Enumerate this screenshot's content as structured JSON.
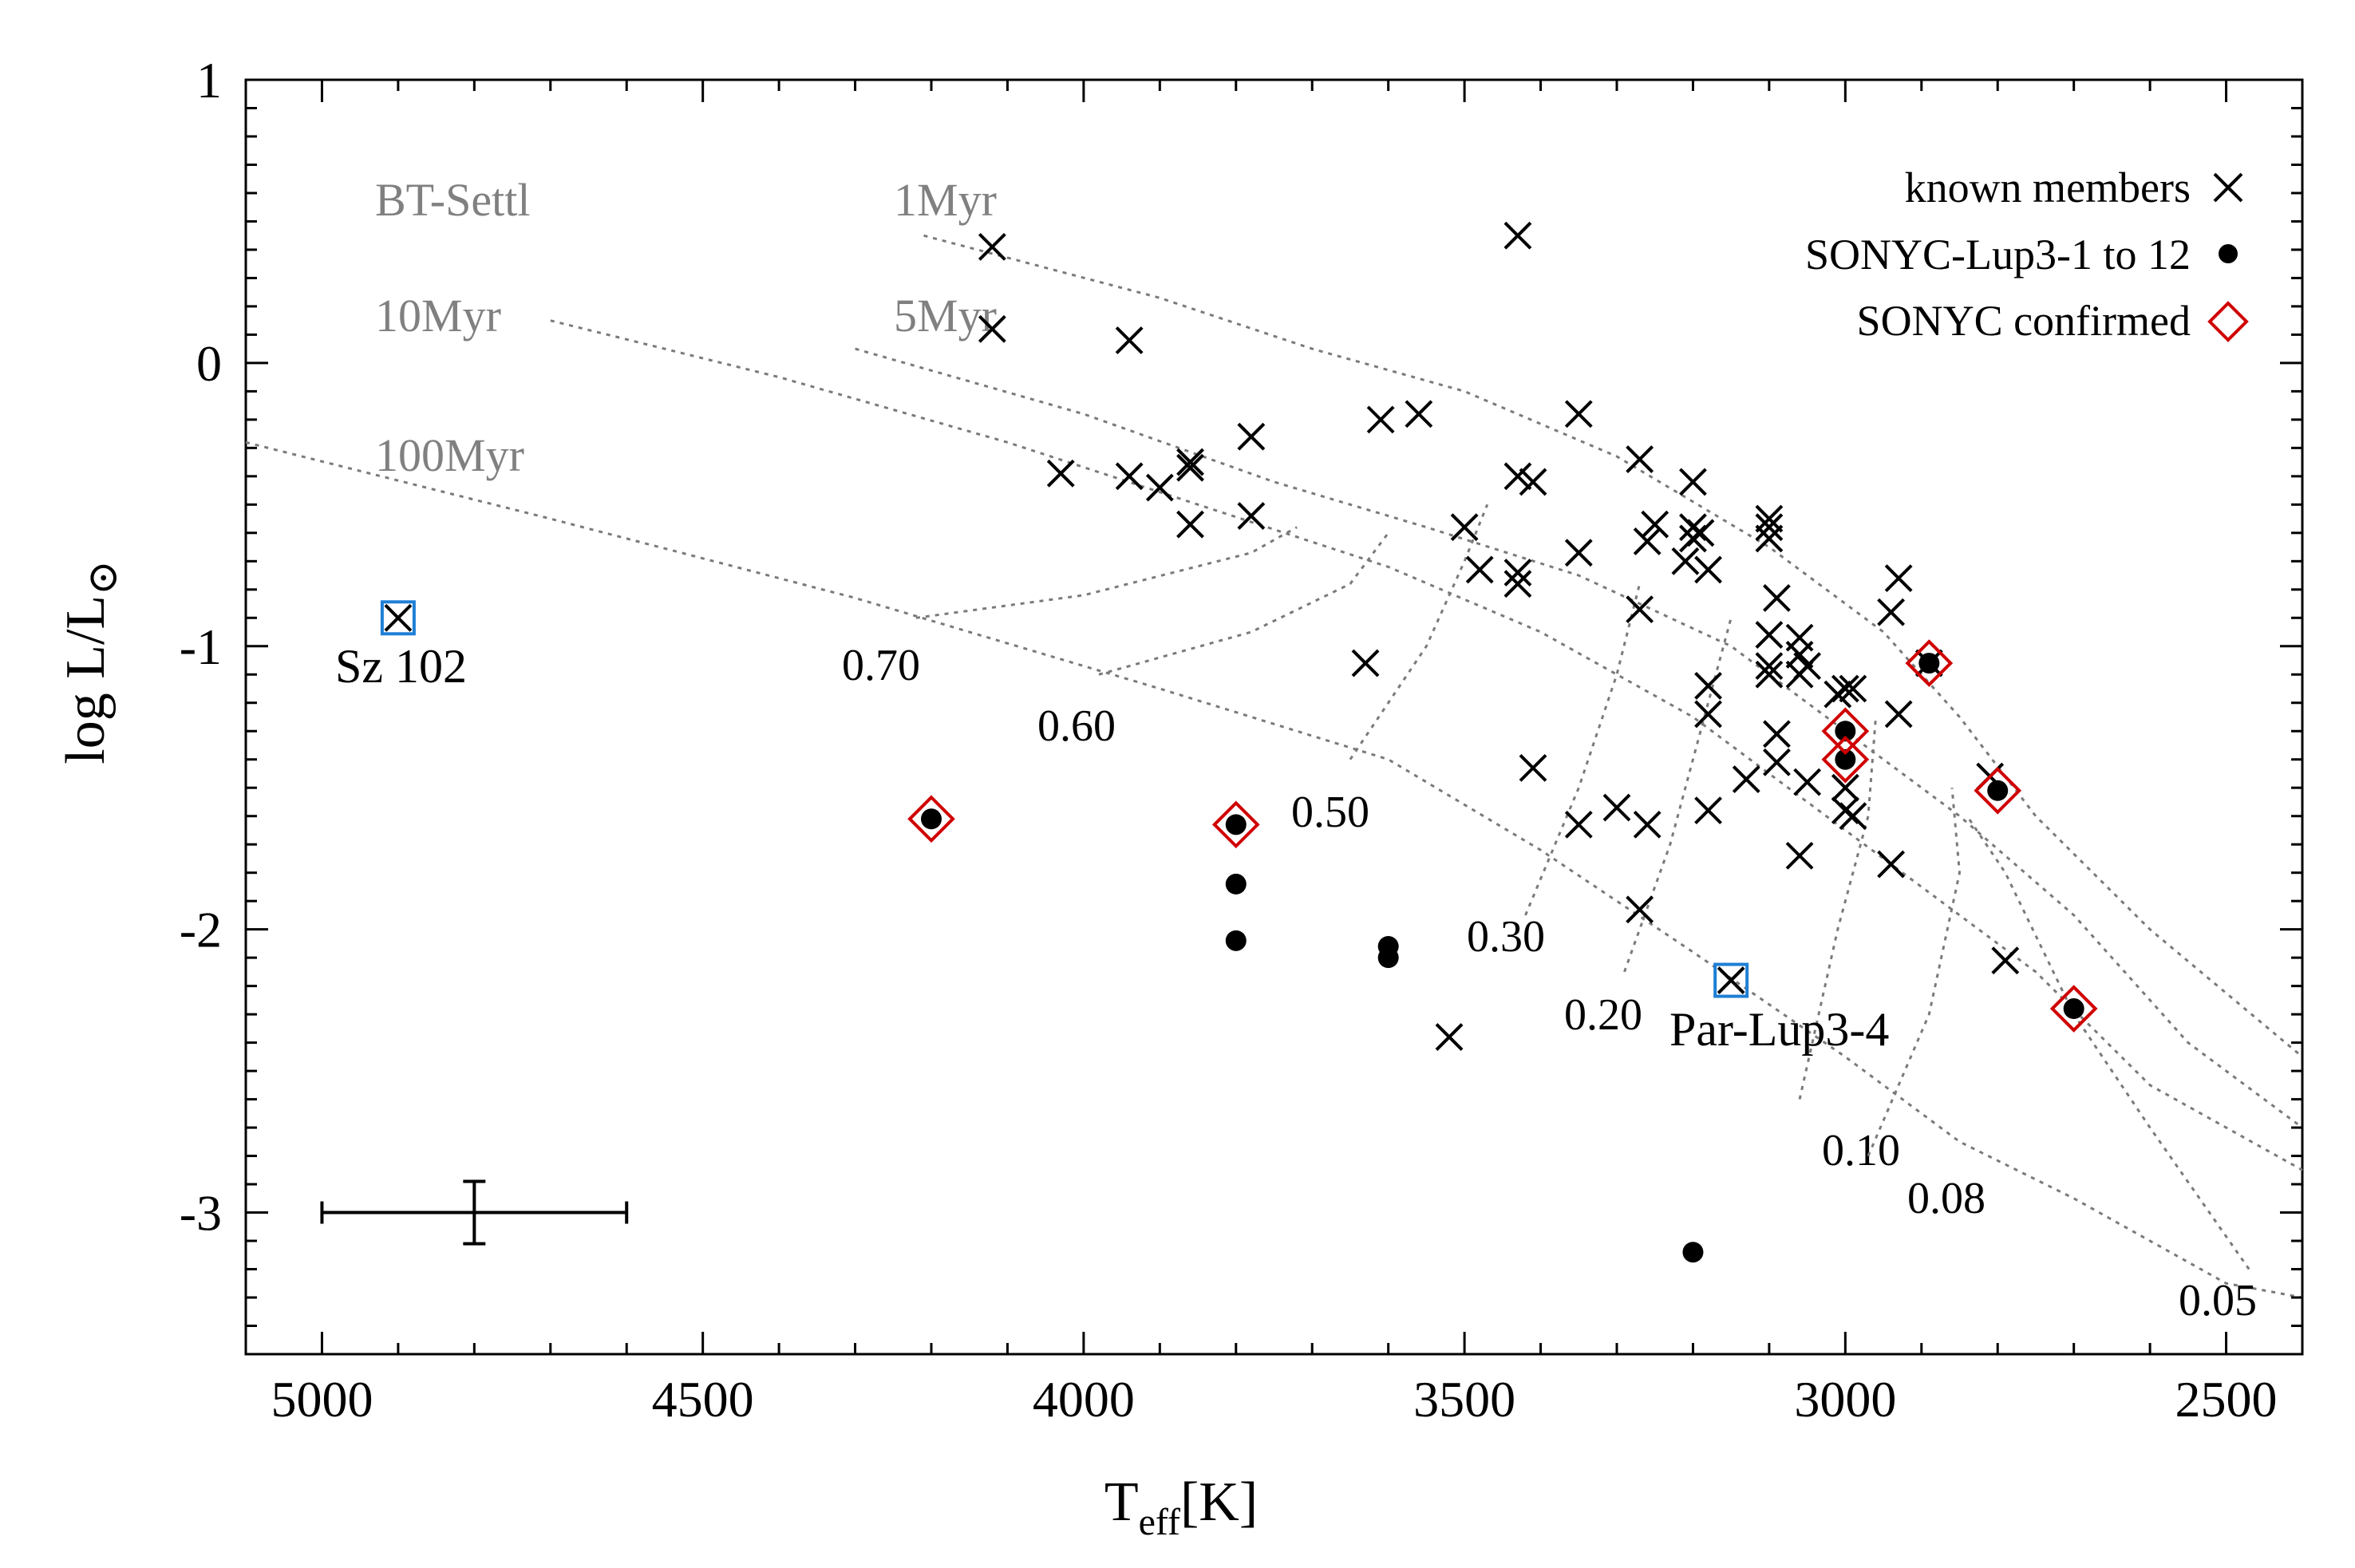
{
  "chart_data": {
    "type": "scatter",
    "xlabel": "T",
    "xlabel_sub": "eff",
    "xlabel_unit": "[K]",
    "ylabel": "log L/L",
    "ylabel_sub": "⊙",
    "xlim": [
      5100,
      2400
    ],
    "ylim": [
      -3.5,
      1.0
    ],
    "xticks": [
      5000,
      4500,
      4000,
      3500,
      3000,
      2500
    ],
    "xtick_labels": [
      "5000",
      "4500",
      "4000",
      "3500",
      "3000",
      "2500"
    ],
    "yticks": [
      1,
      0,
      -1,
      -2,
      -3
    ],
    "ytick_labels": [
      "1",
      "0",
      "-1",
      "-2",
      "-3"
    ],
    "legend": {
      "position": "top-right",
      "entries": [
        {
          "label": "known members",
          "symbol": "cross"
        },
        {
          "label": "SONYC-Lup3-1 to 12",
          "symbol": "dot"
        },
        {
          "label": "SONYC confirmed",
          "symbol": "diamond"
        }
      ]
    },
    "model_label": "BT-Settl",
    "known_members": [
      [
        4120,
        0.41
      ],
      [
        4120,
        0.12
      ],
      [
        3940,
        0.08
      ],
      [
        4030,
        -0.39
      ],
      [
        3940,
        -0.4
      ],
      [
        3900,
        -0.44
      ],
      [
        3860,
        -0.37
      ],
      [
        3860,
        -0.35
      ],
      [
        3860,
        -0.57
      ],
      [
        3780,
        -0.26
      ],
      [
        3780,
        -0.54
      ],
      [
        3610,
        -0.2
      ],
      [
        3560,
        -0.18
      ],
      [
        3630,
        -1.06
      ],
      [
        3500,
        -0.58
      ],
      [
        3480,
        -0.73
      ],
      [
        3430,
        0.45
      ],
      [
        3430,
        -0.4
      ],
      [
        3410,
        -0.42
      ],
      [
        3430,
        -0.74
      ],
      [
        3430,
        -0.78
      ],
      [
        3410,
        -1.43
      ],
      [
        3350,
        -0.18
      ],
      [
        3350,
        -0.67
      ],
      [
        3350,
        -1.63
      ],
      [
        3300,
        -1.57
      ],
      [
        3270,
        -0.34
      ],
      [
        3260,
        -0.63
      ],
      [
        3250,
        -0.57
      ],
      [
        3270,
        -0.87
      ],
      [
        3260,
        -1.63
      ],
      [
        3270,
        -1.93
      ],
      [
        3200,
        -0.42
      ],
      [
        3200,
        -0.58
      ],
      [
        3200,
        -0.62
      ],
      [
        3210,
        -0.7
      ],
      [
        3180,
        -0.73
      ],
      [
        3190,
        -0.6
      ],
      [
        3180,
        -1.14
      ],
      [
        3180,
        -1.24
      ],
      [
        3180,
        -1.58
      ],
      [
        3130,
        -1.47
      ],
      [
        3100,
        -0.55
      ],
      [
        3100,
        -0.58
      ],
      [
        3100,
        -0.62
      ],
      [
        3090,
        -0.83
      ],
      [
        3100,
        -0.96
      ],
      [
        3100,
        -1.07
      ],
      [
        3100,
        -1.1
      ],
      [
        3090,
        -1.31
      ],
      [
        3090,
        -1.41
      ],
      [
        3060,
        -0.97
      ],
      [
        3060,
        -1.03
      ],
      [
        3050,
        -1.07
      ],
      [
        3060,
        -1.1
      ],
      [
        3050,
        -1.48
      ],
      [
        3060,
        -1.74
      ],
      [
        3000,
        -1.15
      ],
      [
        2990,
        -1.15
      ],
      [
        3010,
        -1.17
      ],
      [
        3000,
        -1.5
      ],
      [
        3000,
        -1.58
      ],
      [
        2990,
        -1.6
      ],
      [
        2930,
        -0.76
      ],
      [
        2940,
        -0.88
      ],
      [
        2930,
        -1.24
      ],
      [
        2940,
        -1.77
      ],
      [
        2890,
        -1.06
      ],
      [
        2810,
        -1.46
      ],
      [
        2790,
        -2.11
      ],
      [
        3520,
        -2.38
      ],
      [
        3150,
        -2.18
      ],
      [
        4900,
        -0.9
      ]
    ],
    "sonyc_candidates": [
      [
        4200,
        -1.61
      ],
      [
        3800,
        -1.63
      ],
      [
        3800,
        -1.84
      ],
      [
        3800,
        -2.04
      ],
      [
        3600,
        -2.06
      ],
      [
        3600,
        -2.1
      ],
      [
        3000,
        -1.3
      ],
      [
        3000,
        -1.4
      ],
      [
        2890,
        -1.06
      ],
      [
        2800,
        -1.51
      ],
      [
        2700,
        -2.28
      ],
      [
        3200,
        -3.14
      ]
    ],
    "sonyc_confirmed": [
      [
        4200,
        -1.61
      ],
      [
        3800,
        -1.63
      ],
      [
        3000,
        -1.3
      ],
      [
        3000,
        -1.4
      ],
      [
        2890,
        -1.06
      ],
      [
        2800,
        -1.51
      ],
      [
        2700,
        -2.28
      ]
    ],
    "highlighted": [
      {
        "label": "Sz 102",
        "x": 4900,
        "y": -0.9
      },
      {
        "label": "Par-Lup3-4",
        "x": 3150,
        "y": -2.18
      }
    ],
    "isochrones": [
      {
        "label": "1Myr",
        "points": [
          [
            4210,
            0.45
          ],
          [
            3900,
            0.23
          ],
          [
            3700,
            0.05
          ],
          [
            3500,
            -0.1
          ],
          [
            3300,
            -0.33
          ],
          [
            3100,
            -0.65
          ],
          [
            2950,
            -0.95
          ],
          [
            2850,
            -1.25
          ],
          [
            2750,
            -1.6
          ],
          [
            2600,
            -2.0
          ],
          [
            2400,
            -2.45
          ]
        ]
      },
      {
        "label": "5Myr",
        "points": [
          [
            4300,
            0.05
          ],
          [
            4000,
            -0.18
          ],
          [
            3750,
            -0.42
          ],
          [
            3550,
            -0.58
          ],
          [
            3350,
            -0.75
          ],
          [
            3150,
            -1.0
          ],
          [
            3000,
            -1.3
          ],
          [
            2850,
            -1.6
          ],
          [
            2700,
            -1.95
          ],
          [
            2550,
            -2.4
          ],
          [
            2400,
            -2.7
          ]
        ]
      },
      {
        "label": "10Myr",
        "points": [
          [
            4700,
            0.15
          ],
          [
            4400,
            -0.05
          ],
          [
            4100,
            -0.28
          ],
          [
            3850,
            -0.5
          ],
          [
            3600,
            -0.72
          ],
          [
            3400,
            -0.95
          ],
          [
            3200,
            -1.25
          ],
          [
            3050,
            -1.55
          ],
          [
            2900,
            -1.85
          ],
          [
            2750,
            -2.15
          ],
          [
            2600,
            -2.55
          ],
          [
            2400,
            -2.85
          ]
        ]
      },
      {
        "label": "100Myr",
        "points": [
          [
            5100,
            -0.28
          ],
          [
            4700,
            -0.55
          ],
          [
            4300,
            -0.83
          ],
          [
            3900,
            -1.15
          ],
          [
            3600,
            -1.4
          ],
          [
            3400,
            -1.72
          ],
          [
            3200,
            -2.08
          ],
          [
            3000,
            -2.45
          ],
          [
            2850,
            -2.75
          ],
          [
            2700,
            -2.95
          ],
          [
            2500,
            -3.25
          ],
          [
            2400,
            -3.3
          ]
        ]
      }
    ],
    "mass_tracks": [
      {
        "label": "0.70",
        "points": [
          [
            4220,
            -0.9
          ],
          [
            4000,
            -0.82
          ],
          [
            3780,
            -0.67
          ],
          [
            3720,
            -0.58
          ]
        ]
      },
      {
        "label": "0.60",
        "points": [
          [
            3980,
            -1.1
          ],
          [
            3780,
            -0.95
          ],
          [
            3650,
            -0.78
          ],
          [
            3600,
            -0.6
          ]
        ]
      },
      {
        "label": "0.50",
        "points": [
          [
            3650,
            -1.4
          ],
          [
            3550,
            -1.0
          ],
          [
            3500,
            -0.7
          ],
          [
            3470,
            -0.5
          ]
        ]
      },
      {
        "label": "0.30",
        "points": [
          [
            3420,
            -1.95
          ],
          [
            3350,
            -1.5
          ],
          [
            3300,
            -1.1
          ],
          [
            3270,
            -0.78
          ]
        ]
      },
      {
        "label": "0.20",
        "points": [
          [
            3290,
            -2.15
          ],
          [
            3230,
            -1.7
          ],
          [
            3180,
            -1.2
          ],
          [
            3150,
            -0.9
          ]
        ]
      },
      {
        "label": "0.10",
        "points": [
          [
            3060,
            -2.6
          ],
          [
            3010,
            -2.0
          ],
          [
            2970,
            -1.6
          ],
          [
            2960,
            -1.25
          ]
        ]
      },
      {
        "label": "0.08",
        "points": [
          [
            2970,
            -2.8
          ],
          [
            2890,
            -2.3
          ],
          [
            2850,
            -1.8
          ],
          [
            2860,
            -1.5
          ]
        ]
      },
      {
        "label": "0.05",
        "points": [
          [
            2470,
            -3.2
          ],
          [
            2600,
            -2.7
          ],
          [
            2700,
            -2.3
          ],
          [
            2790,
            -1.8
          ],
          [
            2840,
            -1.6
          ]
        ]
      }
    ],
    "error_bar": {
      "x": 4800,
      "y": -3.0,
      "x_low": 5000,
      "x_high": 4600,
      "y_low": -3.11,
      "y_high": -2.89
    }
  }
}
